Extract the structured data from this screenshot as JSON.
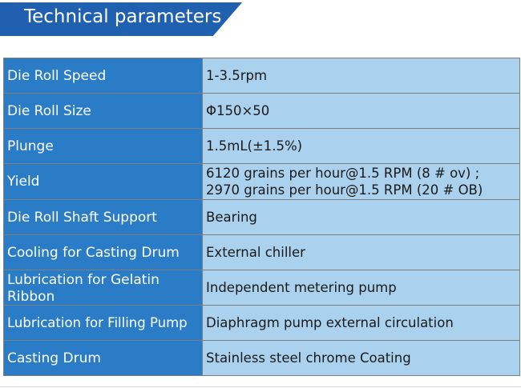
{
  "header": {
    "title": "Technical parameters",
    "color": "#1f61b0"
  },
  "colors": {
    "label_background": "#2b7cc6",
    "value_background": "#aad1ed",
    "border": "#7f7f7f"
  },
  "parameters": [
    {
      "label": "Die Roll Speed",
      "value": "1-3.5rpm"
    },
    {
      "label": "Die Roll Size",
      "value": "Φ150×50"
    },
    {
      "label": "Plunge",
      "value": "1.5mL(±1.5%)"
    },
    {
      "label": "Yield",
      "value": "6120 grains per hour@1.5 RPM (8 # ov) ;\n2970 grains per hour@1.5 RPM (20 # OB)"
    },
    {
      "label": "Die Roll Shaft Support",
      "value": "Bearing"
    },
    {
      "label": "Cooling for Casting Drum",
      "value": "External chiller"
    },
    {
      "label": "Lubrication for Gelatin Ribbon",
      "value": "Independent metering pump"
    },
    {
      "label": "Lubrication for Filling Pump",
      "value": "Diaphragm pump external circulation"
    },
    {
      "label": "Casting Drum",
      "value": "Stainless steel chrome Coating"
    }
  ]
}
